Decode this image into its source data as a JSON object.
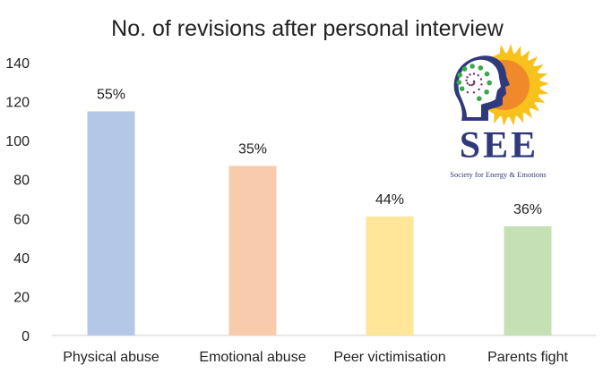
{
  "chart_data": {
    "type": "bar",
    "title": "No. of revisions after personal interview",
    "xlabel": "",
    "ylabel": "",
    "categories": [
      "Physical abuse",
      "Emotional abuse",
      "Peer victimisation",
      "Parents fight"
    ],
    "values": [
      115,
      87,
      61,
      56
    ],
    "data_labels": [
      "55%",
      "35%",
      "44%",
      "36%"
    ],
    "colors": [
      "#b4c7e7",
      "#f8cbad",
      "#ffe699",
      "#c5e0b4"
    ],
    "ylim": [
      0,
      140
    ],
    "yticks": [
      0,
      20,
      40,
      60,
      80,
      100,
      120,
      140
    ],
    "grid": false,
    "legend": "none"
  },
  "logo": {
    "name": "SEE",
    "tagline": "Society for Energy & Emotions",
    "colors": {
      "navy": "#2e3a7c",
      "sun": "#f7c21b",
      "orange": "#f0892a",
      "green": "#3aa84a",
      "purple": "#7b2d6b"
    }
  }
}
